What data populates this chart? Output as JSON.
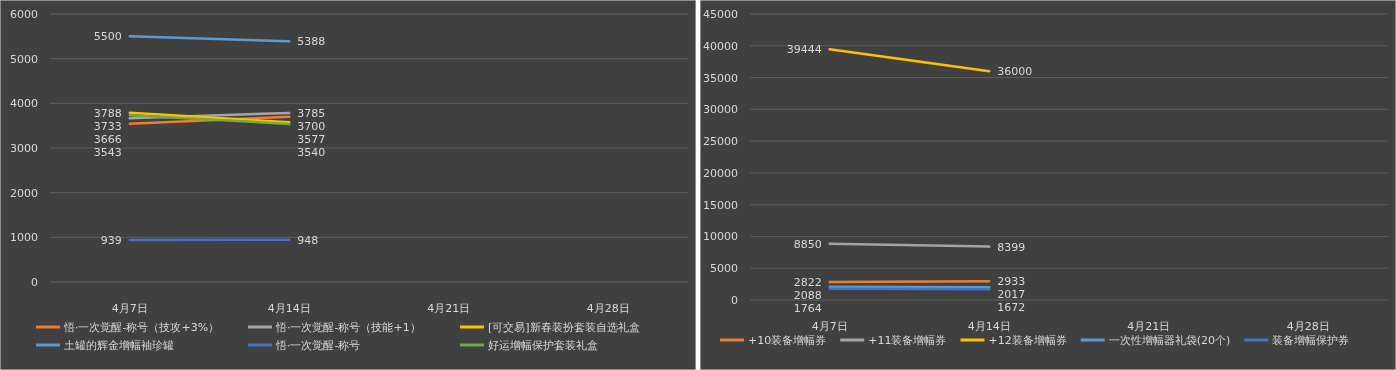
{
  "chart_data": [
    {
      "type": "line",
      "categories": [
        "4月7日",
        "4月14日",
        "4月21日",
        "4月28日"
      ],
      "ylim": [
        0,
        6000
      ],
      "yticks": [
        0,
        1000,
        2000,
        3000,
        4000,
        5000,
        6000
      ],
      "grid": "y",
      "legend": "bottom",
      "data_labels": true,
      "marker": "none",
      "series": [
        {
          "name": "悟·一次觉醒-称号（技攻+3%）",
          "color": "#ed7d31",
          "values": [
            3543,
            3700,
            null,
            null
          ]
        },
        {
          "name": "悟·一次觉醒-称号（技能+1）",
          "color": "#a5a5a5",
          "values": [
            3666,
            3785,
            null,
            null
          ]
        },
        {
          "name": "[可交易]新春装扮套装自选礼盒",
          "color": "#ffc000",
          "values": [
            3788,
            3577,
            null,
            null
          ]
        },
        {
          "name": "土罐的辉金增幅袖珍罐",
          "color": "#5b9bd5",
          "values": [
            5500,
            5388,
            null,
            null
          ]
        },
        {
          "name": "悟·一次觉醒-称号",
          "color": "#4472c4",
          "values": [
            939,
            948,
            null,
            null
          ]
        },
        {
          "name": "好运增幅保护套装礼盒",
          "color": "#70ad47",
          "values": [
            3733,
            3540,
            null,
            null
          ]
        }
      ]
    },
    {
      "type": "line",
      "categories": [
        "4月7日",
        "4月14日",
        "4月21日",
        "4月28日"
      ],
      "ylim": [
        0,
        45000
      ],
      "yticks": [
        0,
        5000,
        10000,
        15000,
        20000,
        25000,
        30000,
        35000,
        40000,
        45000
      ],
      "grid": "y",
      "legend": "bottom",
      "data_labels": true,
      "marker": "none",
      "series": [
        {
          "name": "+10装备增幅券",
          "color": "#ed7d31",
          "values": [
            2822,
            2933,
            null,
            null
          ]
        },
        {
          "name": "+11装备增幅券",
          "color": "#a5a5a5",
          "values": [
            8850,
            8399,
            null,
            null
          ]
        },
        {
          "name": "+12装备增幅券",
          "color": "#ffc000",
          "values": [
            39444,
            36000,
            null,
            null
          ]
        },
        {
          "name": "一次性增幅器礼袋(20个)",
          "color": "#5b9bd5",
          "values": [
            2088,
            2017,
            null,
            null
          ]
        },
        {
          "name": "装备增幅保护券",
          "color": "#4472c4",
          "values": [
            1764,
            1672,
            null,
            null
          ]
        }
      ]
    }
  ]
}
